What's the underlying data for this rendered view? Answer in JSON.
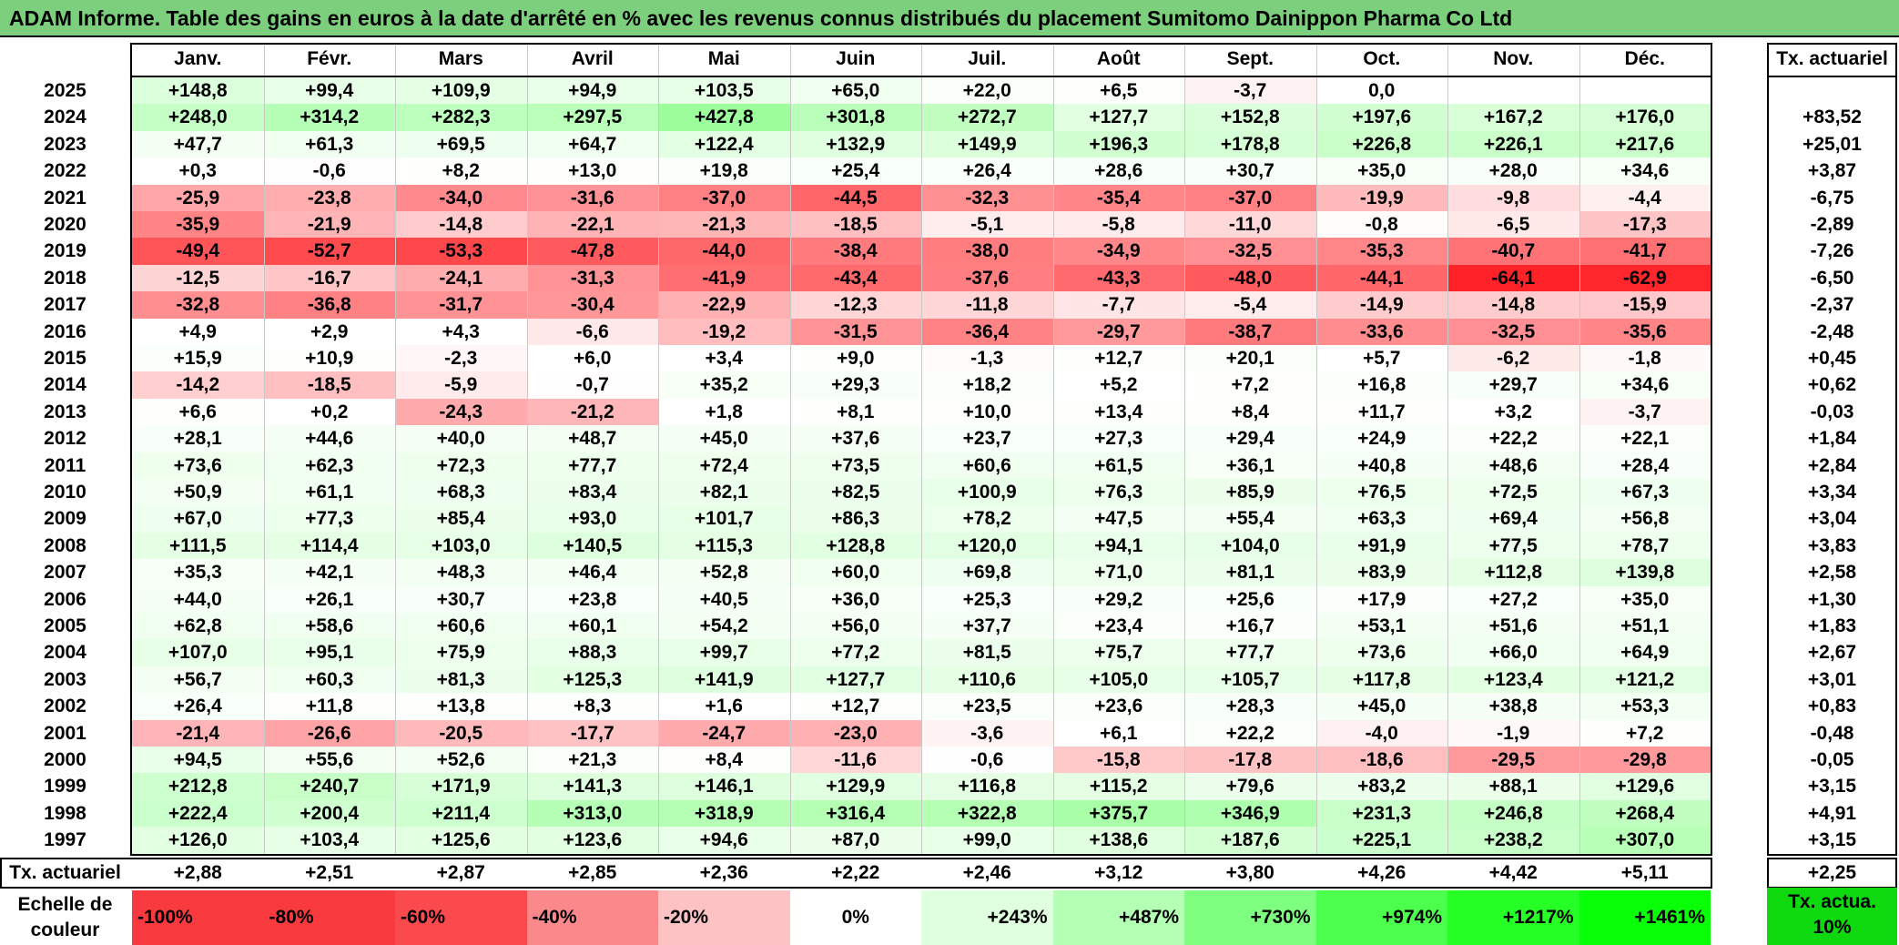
{
  "title": "ADAM Informe. Table des gains en euros à la date d'arrêté en % avec les revenus connus distribués du placement Sumitomo Dainippon Pharma Co Ltd",
  "months": [
    "Janv.",
    "Févr.",
    "Mars",
    "Avril",
    "Mai",
    "Juin",
    "Juil.",
    "Août",
    "Sept.",
    "Oct.",
    "Nov.",
    "Déc."
  ],
  "tx_header": "Tx. actuariel",
  "rows": [
    {
      "year": "2025",
      "values": [
        "+148,8",
        "+99,4",
        "+109,9",
        "+94,9",
        "+103,5",
        "+65,0",
        "+22,0",
        "+6,5",
        "-3,7",
        "0,0",
        "",
        ""
      ],
      "tx": ""
    },
    {
      "year": "2024",
      "values": [
        "+248,0",
        "+314,2",
        "+282,3",
        "+297,5",
        "+427,8",
        "+301,8",
        "+272,7",
        "+127,7",
        "+152,8",
        "+197,6",
        "+167,2",
        "+176,0"
      ],
      "tx": "+83,52"
    },
    {
      "year": "2023",
      "values": [
        "+47,7",
        "+61,3",
        "+69,5",
        "+64,7",
        "+122,4",
        "+132,9",
        "+149,9",
        "+196,3",
        "+178,8",
        "+226,8",
        "+226,1",
        "+217,6"
      ],
      "tx": "+25,01"
    },
    {
      "year": "2022",
      "values": [
        "+0,3",
        "-0,6",
        "+8,2",
        "+13,0",
        "+19,8",
        "+25,4",
        "+26,4",
        "+28,6",
        "+30,7",
        "+35,0",
        "+28,0",
        "+34,6"
      ],
      "tx": "+3,87"
    },
    {
      "year": "2021",
      "values": [
        "-25,9",
        "-23,8",
        "-34,0",
        "-31,6",
        "-37,0",
        "-44,5",
        "-32,3",
        "-35,4",
        "-37,0",
        "-19,9",
        "-9,8",
        "-4,4"
      ],
      "tx": "-6,75"
    },
    {
      "year": "2020",
      "values": [
        "-35,9",
        "-21,9",
        "-14,8",
        "-22,1",
        "-21,3",
        "-18,5",
        "-5,1",
        "-5,8",
        "-11,0",
        "-0,8",
        "-6,5",
        "-17,3"
      ],
      "tx": "-2,89"
    },
    {
      "year": "2019",
      "values": [
        "-49,4",
        "-52,7",
        "-53,3",
        "-47,8",
        "-44,0",
        "-38,4",
        "-38,0",
        "-34,9",
        "-32,5",
        "-35,3",
        "-40,7",
        "-41,7"
      ],
      "tx": "-7,26"
    },
    {
      "year": "2018",
      "values": [
        "-12,5",
        "-16,7",
        "-24,1",
        "-31,3",
        "-41,9",
        "-43,4",
        "-37,6",
        "-43,3",
        "-48,0",
        "-44,1",
        "-64,1",
        "-62,9"
      ],
      "tx": "-6,50"
    },
    {
      "year": "2017",
      "values": [
        "-32,8",
        "-36,8",
        "-31,7",
        "-30,4",
        "-22,9",
        "-12,3",
        "-11,8",
        "-7,7",
        "-5,4",
        "-14,9",
        "-14,8",
        "-15,9"
      ],
      "tx": "-2,37"
    },
    {
      "year": "2016",
      "values": [
        "+4,9",
        "+2,9",
        "+4,3",
        "-6,6",
        "-19,2",
        "-31,5",
        "-36,4",
        "-29,7",
        "-38,7",
        "-33,6",
        "-32,5",
        "-35,6"
      ],
      "tx": "-2,48"
    },
    {
      "year": "2015",
      "values": [
        "+15,9",
        "+10,9",
        "-2,3",
        "+6,0",
        "+3,4",
        "+9,0",
        "-1,3",
        "+12,7",
        "+20,1",
        "+5,7",
        "-6,2",
        "-1,8"
      ],
      "tx": "+0,45"
    },
    {
      "year": "2014",
      "values": [
        "-14,2",
        "-18,5",
        "-5,9",
        "-0,7",
        "+35,2",
        "+29,3",
        "+18,2",
        "+5,2",
        "+7,2",
        "+16,8",
        "+29,7",
        "+34,6"
      ],
      "tx": "+0,62"
    },
    {
      "year": "2013",
      "values": [
        "+6,6",
        "+0,2",
        "-24,3",
        "-21,2",
        "+1,8",
        "+8,1",
        "+10,0",
        "+13,4",
        "+8,4",
        "+11,7",
        "+3,2",
        "-3,7"
      ],
      "tx": "-0,03"
    },
    {
      "year": "2012",
      "values": [
        "+28,1",
        "+44,6",
        "+40,0",
        "+48,7",
        "+45,0",
        "+37,6",
        "+23,7",
        "+27,3",
        "+29,4",
        "+24,9",
        "+22,2",
        "+22,1"
      ],
      "tx": "+1,84"
    },
    {
      "year": "2011",
      "values": [
        "+73,6",
        "+62,3",
        "+72,3",
        "+77,7",
        "+72,4",
        "+73,5",
        "+60,6",
        "+61,5",
        "+36,1",
        "+40,8",
        "+48,6",
        "+28,4"
      ],
      "tx": "+2,84"
    },
    {
      "year": "2010",
      "values": [
        "+50,9",
        "+61,1",
        "+68,3",
        "+83,4",
        "+82,1",
        "+82,5",
        "+100,9",
        "+76,3",
        "+85,9",
        "+76,5",
        "+72,5",
        "+67,3"
      ],
      "tx": "+3,34"
    },
    {
      "year": "2009",
      "values": [
        "+67,0",
        "+77,3",
        "+85,4",
        "+93,0",
        "+101,7",
        "+86,3",
        "+78,2",
        "+47,5",
        "+55,4",
        "+63,3",
        "+69,4",
        "+56,8"
      ],
      "tx": "+3,04"
    },
    {
      "year": "2008",
      "values": [
        "+111,5",
        "+114,4",
        "+103,0",
        "+140,5",
        "+115,3",
        "+128,8",
        "+120,0",
        "+94,1",
        "+104,0",
        "+91,9",
        "+77,5",
        "+78,7"
      ],
      "tx": "+3,83"
    },
    {
      "year": "2007",
      "values": [
        "+35,3",
        "+42,1",
        "+48,3",
        "+46,4",
        "+52,8",
        "+60,0",
        "+69,8",
        "+71,0",
        "+81,1",
        "+83,9",
        "+112,8",
        "+139,8"
      ],
      "tx": "+2,58"
    },
    {
      "year": "2006",
      "values": [
        "+44,0",
        "+26,1",
        "+30,7",
        "+23,8",
        "+40,5",
        "+36,0",
        "+25,3",
        "+29,2",
        "+25,6",
        "+17,9",
        "+27,2",
        "+35,0"
      ],
      "tx": "+1,30"
    },
    {
      "year": "2005",
      "values": [
        "+62,8",
        "+58,6",
        "+60,6",
        "+60,1",
        "+54,2",
        "+56,0",
        "+37,7",
        "+23,4",
        "+16,7",
        "+53,1",
        "+51,6",
        "+51,1"
      ],
      "tx": "+1,83"
    },
    {
      "year": "2004",
      "values": [
        "+107,0",
        "+95,1",
        "+75,9",
        "+88,3",
        "+99,7",
        "+77,2",
        "+81,5",
        "+75,7",
        "+77,7",
        "+73,6",
        "+66,0",
        "+64,9"
      ],
      "tx": "+2,67"
    },
    {
      "year": "2003",
      "values": [
        "+56,7",
        "+60,3",
        "+81,3",
        "+125,3",
        "+141,9",
        "+127,7",
        "+110,6",
        "+105,0",
        "+105,7",
        "+117,8",
        "+123,4",
        "+121,2"
      ],
      "tx": "+3,01"
    },
    {
      "year": "2002",
      "values": [
        "+26,4",
        "+11,8",
        "+13,8",
        "+8,3",
        "+1,6",
        "+12,7",
        "+23,5",
        "+23,6",
        "+28,3",
        "+45,0",
        "+38,8",
        "+53,3"
      ],
      "tx": "+0,83"
    },
    {
      "year": "2001",
      "values": [
        "-21,4",
        "-26,6",
        "-20,5",
        "-17,7",
        "-24,7",
        "-23,0",
        "-3,6",
        "+6,1",
        "+22,2",
        "-4,0",
        "-1,9",
        "+7,2"
      ],
      "tx": "-0,48"
    },
    {
      "year": "2000",
      "values": [
        "+94,5",
        "+55,6",
        "+52,6",
        "+21,3",
        "+8,4",
        "-11,6",
        "-0,6",
        "-15,8",
        "-17,8",
        "-18,6",
        "-29,5",
        "-29,8"
      ],
      "tx": "-0,05"
    },
    {
      "year": "1999",
      "values": [
        "+212,8",
        "+240,7",
        "+171,9",
        "+141,3",
        "+146,1",
        "+129,9",
        "+116,8",
        "+115,2",
        "+79,6",
        "+83,2",
        "+88,1",
        "+129,6"
      ],
      "tx": "+3,15"
    },
    {
      "year": "1998",
      "values": [
        "+222,4",
        "+200,4",
        "+211,4",
        "+313,0",
        "+318,9",
        "+316,4",
        "+322,8",
        "+375,7",
        "+346,9",
        "+231,3",
        "+246,8",
        "+268,4"
      ],
      "tx": "+4,91"
    },
    {
      "year": "1997",
      "values": [
        "+126,0",
        "+103,4",
        "+125,6",
        "+123,6",
        "+94,6",
        "+87,0",
        "+99,0",
        "+138,6",
        "+187,6",
        "+225,1",
        "+238,2",
        "+307,0"
      ],
      "tx": "+3,15"
    }
  ],
  "tx_row": {
    "label": "Tx. actuariel",
    "values": [
      "+2,88",
      "+2,51",
      "+2,87",
      "+2,85",
      "+2,36",
      "+2,22",
      "+2,46",
      "+3,12",
      "+3,80",
      "+4,26",
      "+4,42",
      "+5,11"
    ],
    "total": "+2,25"
  },
  "legend": {
    "label": "Echelle de couleur",
    "items": [
      {
        "text": "-100%",
        "color": "#f8393e"
      },
      {
        "text": "-80%",
        "color": "#f8393e"
      },
      {
        "text": "-60%",
        "color": "#fa4a4e"
      },
      {
        "text": "-40%",
        "color": "#fb888b"
      },
      {
        "text": "-20%",
        "color": "#fdc3c4"
      },
      {
        "text": "0%",
        "color": "#ffffff"
      },
      {
        "text": "+243%",
        "color": "#dfffdf"
      },
      {
        "text": "+487%",
        "color": "#b3ffb3"
      },
      {
        "text": "+730%",
        "color": "#7fff7f"
      },
      {
        "text": "+974%",
        "color": "#4dff4d"
      },
      {
        "text": "+1217%",
        "color": "#25ff25"
      },
      {
        "text": "+1461%",
        "color": "#08ff08"
      }
    ],
    "tx_label": "Tx. actua. 10%",
    "tx_color": "#0ed80e"
  }
}
